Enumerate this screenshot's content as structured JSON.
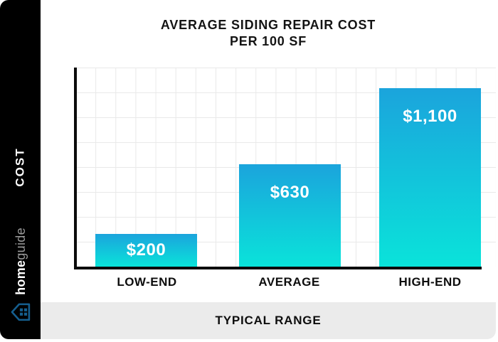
{
  "sidebar": {
    "cost_label": "COST",
    "brand": {
      "name_bold": "home",
      "name_light": "guide",
      "logo_icon": "house-logo-icon",
      "logo_color": "#155e8e"
    }
  },
  "chart_data": {
    "type": "bar",
    "title": "AVERAGE SIDING REPAIR COST",
    "title_line2": "PER 100 SF",
    "categories": [
      "LOW-END",
      "AVERAGE",
      "HIGH-END"
    ],
    "values": [
      200,
      630,
      1100
    ],
    "value_labels": [
      "$200",
      "$630",
      "$1,100"
    ],
    "xlabel": "TYPICAL RANGE",
    "ylabel": "COST",
    "ylim": [
      0,
      1225
    ],
    "grid": true,
    "legend": false,
    "bar_gradient_top": "#1ba4dc",
    "bar_gradient_bottom": "#0ae3da",
    "grid_color": "#e9e9e9",
    "axis_color": "#0b0b0b"
  }
}
